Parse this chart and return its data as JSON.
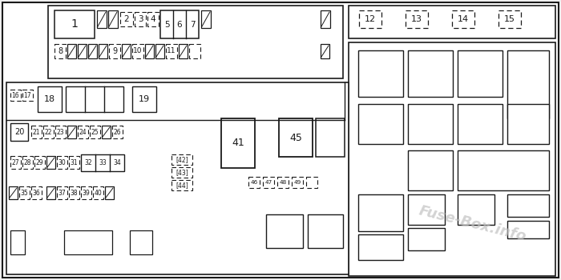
{
  "bg": "#f0f0f0",
  "lc": "#1a1a1a",
  "wm_color": "#c0c0c0",
  "wm_text": "Fuse-Box.info"
}
